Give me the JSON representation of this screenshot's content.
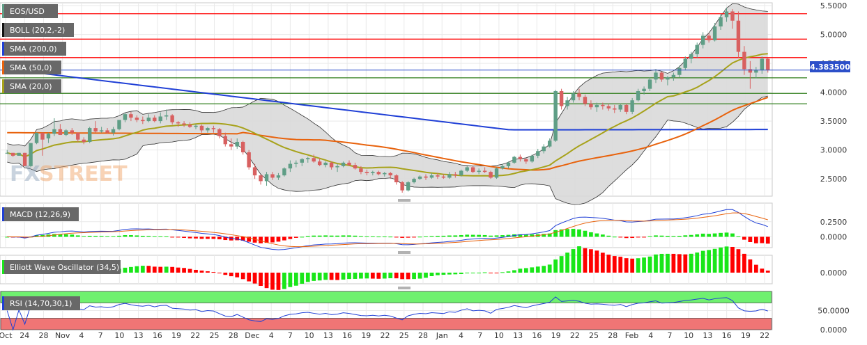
{
  "colors": {
    "background": "#ffffff",
    "grid": "#e9e9e9",
    "frame": "#c8c8c8",
    "candle_up": "#5f9e86",
    "candle_down": "#d86060",
    "sma200": "#1f3fd6",
    "sma50": "#e8620c",
    "sma20": "#a7a21a",
    "bollinger_fill": "#d9d9d9",
    "bollinger_line": "#333333",
    "hline_red": "#ff0000",
    "hline_green": "#2e7d1a",
    "hline_blue": "#2c4fc9",
    "hist_green": "#19e619",
    "hist_red": "#ff0000",
    "rsi_overbought": "#6ff06f",
    "rsi_oversold": "#f07575",
    "price_tag": "#2c4fc9",
    "legend_bg": "#686868"
  },
  "legend": {
    "symbol": "EOS/USD",
    "boll": "BOLL (20,2,-2)",
    "sma200": "SMA (200,0)",
    "sma50": "SMA (50,0)",
    "sma20": "SMA (20,0)",
    "macd": "MACD (12,26,9)",
    "ewo": "Elliott Wave Oscillator (34,5)",
    "rsi": "RSI (14,70,30,1)"
  },
  "watermark": {
    "fx": "FX",
    "street": "STREET"
  },
  "last_price": "4.383500",
  "chart_data": [
    {
      "type": "candlestick",
      "ylim": [
        2.2,
        5.55
      ],
      "y_ticks": [
        "5.5000",
        "5.0000",
        "4.5000",
        "4.0000",
        "3.5000",
        "3.0000",
        "2.5000"
      ],
      "tick_values": [
        5.5,
        5.0,
        4.5,
        4.0,
        3.5,
        3.0,
        2.5
      ],
      "x_labels": [
        "Oct",
        "24",
        "28",
        "Nov",
        "4",
        "7",
        "10",
        "13",
        "16",
        "19",
        "22",
        "25",
        "28",
        "Dec",
        "4",
        "7",
        "10",
        "13",
        "16",
        "19",
        "22",
        "25",
        "28",
        "Jan",
        "4",
        "7",
        "10",
        "13",
        "16",
        "19",
        "22",
        "25",
        "28",
        "Feb",
        "4",
        "7",
        "10",
        "13",
        "16",
        "19",
        "22"
      ],
      "horizontal_levels": [
        {
          "value": 5.36,
          "color": "red"
        },
        {
          "value": 4.92,
          "color": "red"
        },
        {
          "value": 4.6,
          "color": "red"
        },
        {
          "value": 4.25,
          "color": "green"
        },
        {
          "value": 3.98,
          "color": "green"
        },
        {
          "value": 3.8,
          "color": "green"
        }
      ],
      "ohlc": [
        [
          2.95,
          3.0,
          2.93,
          2.95
        ],
        [
          2.95,
          2.95,
          2.88,
          2.9
        ],
        [
          2.9,
          2.95,
          2.9,
          2.95
        ],
        [
          2.95,
          2.95,
          2.72,
          2.72
        ],
        [
          2.72,
          3.12,
          2.7,
          3.12
        ],
        [
          3.12,
          3.3,
          3.1,
          3.3
        ],
        [
          3.3,
          3.3,
          2.9,
          3.18
        ],
        [
          3.2,
          3.3,
          3.12,
          3.28
        ],
        [
          3.28,
          3.55,
          3.24,
          3.36
        ],
        [
          3.36,
          3.45,
          3.26,
          3.26
        ],
        [
          3.26,
          3.36,
          3.24,
          3.34
        ],
        [
          3.34,
          3.38,
          3.26,
          3.3
        ],
        [
          3.3,
          3.3,
          3.14,
          3.18
        ],
        [
          3.18,
          3.22,
          3.1,
          3.14
        ],
        [
          3.14,
          3.4,
          3.12,
          3.38
        ],
        [
          3.38,
          3.5,
          3.3,
          3.32
        ],
        [
          3.32,
          3.4,
          3.3,
          3.34
        ],
        [
          3.34,
          3.38,
          3.28,
          3.3
        ],
        [
          3.3,
          3.4,
          3.25,
          3.36
        ],
        [
          3.36,
          3.52,
          3.34,
          3.52
        ],
        [
          3.52,
          3.65,
          3.48,
          3.62
        ],
        [
          3.62,
          3.66,
          3.5,
          3.56
        ],
        [
          3.56,
          3.6,
          3.48,
          3.52
        ],
        [
          3.52,
          3.58,
          3.45,
          3.5
        ],
        [
          3.5,
          3.62,
          3.48,
          3.56
        ],
        [
          3.56,
          3.6,
          3.48,
          3.5
        ],
        [
          3.5,
          3.65,
          3.46,
          3.58
        ],
        [
          3.58,
          3.7,
          3.52,
          3.6
        ],
        [
          3.6,
          3.62,
          3.44,
          3.48
        ],
        [
          3.48,
          3.5,
          3.4,
          3.46
        ],
        [
          3.46,
          3.5,
          3.4,
          3.44
        ],
        [
          3.44,
          3.48,
          3.38,
          3.4
        ],
        [
          3.4,
          3.45,
          3.36,
          3.42
        ],
        [
          3.42,
          3.44,
          3.3,
          3.34
        ],
        [
          3.34,
          3.4,
          3.3,
          3.38
        ],
        [
          3.38,
          3.42,
          3.3,
          3.36
        ],
        [
          3.36,
          3.38,
          3.2,
          3.24
        ],
        [
          3.24,
          3.3,
          3.06,
          3.1
        ],
        [
          3.1,
          3.2,
          3.0,
          3.06
        ],
        [
          3.06,
          3.2,
          3.02,
          3.14
        ],
        [
          3.14,
          3.16,
          2.92,
          2.96
        ],
        [
          2.96,
          3.0,
          2.66,
          2.7
        ],
        [
          2.7,
          2.76,
          2.5,
          2.56
        ],
        [
          2.56,
          2.58,
          2.4,
          2.46
        ],
        [
          2.46,
          2.62,
          2.38,
          2.58
        ],
        [
          2.58,
          2.62,
          2.48,
          2.52
        ],
        [
          2.52,
          2.6,
          2.48,
          2.56
        ],
        [
          2.56,
          2.7,
          2.54,
          2.68
        ],
        [
          2.68,
          2.82,
          2.62,
          2.76
        ],
        [
          2.76,
          2.82,
          2.7,
          2.78
        ],
        [
          2.78,
          2.86,
          2.72,
          2.84
        ],
        [
          2.84,
          2.88,
          2.78,
          2.86
        ],
        [
          2.86,
          2.92,
          2.78,
          2.8
        ],
        [
          2.8,
          2.86,
          2.72,
          2.74
        ],
        [
          2.74,
          2.8,
          2.7,
          2.78
        ],
        [
          2.78,
          2.8,
          2.66,
          2.7
        ],
        [
          2.7,
          2.76,
          2.62,
          2.72
        ],
        [
          2.72,
          2.8,
          2.7,
          2.78
        ],
        [
          2.78,
          2.82,
          2.72,
          2.74
        ],
        [
          2.74,
          2.78,
          2.66,
          2.68
        ],
        [
          2.68,
          2.72,
          2.58,
          2.62
        ],
        [
          2.62,
          2.66,
          2.56,
          2.6
        ],
        [
          2.6,
          2.64,
          2.56,
          2.62
        ],
        [
          2.62,
          2.64,
          2.56,
          2.58
        ],
        [
          2.58,
          2.62,
          2.54,
          2.6
        ],
        [
          2.6,
          2.62,
          2.5,
          2.56
        ],
        [
          2.56,
          2.58,
          2.4,
          2.44
        ],
        [
          2.44,
          2.46,
          2.26,
          2.3
        ],
        [
          2.3,
          2.46,
          2.28,
          2.44
        ],
        [
          2.44,
          2.52,
          2.42,
          2.5
        ],
        [
          2.5,
          2.56,
          2.48,
          2.54
        ],
        [
          2.54,
          2.58,
          2.48,
          2.52
        ],
        [
          2.52,
          2.6,
          2.5,
          2.56
        ],
        [
          2.56,
          2.6,
          2.5,
          2.54
        ],
        [
          2.54,
          2.58,
          2.5,
          2.52
        ],
        [
          2.52,
          2.62,
          2.5,
          2.58
        ],
        [
          2.58,
          2.62,
          2.52,
          2.56
        ],
        [
          2.56,
          2.66,
          2.54,
          2.64
        ],
        [
          2.64,
          2.72,
          2.62,
          2.7
        ],
        [
          2.7,
          2.72,
          2.6,
          2.62
        ],
        [
          2.62,
          2.68,
          2.58,
          2.64
        ],
        [
          2.64,
          2.7,
          2.6,
          2.62
        ],
        [
          2.62,
          2.64,
          2.5,
          2.52
        ],
        [
          2.52,
          2.7,
          2.5,
          2.68
        ],
        [
          2.68,
          2.76,
          2.66,
          2.72
        ],
        [
          2.72,
          2.8,
          2.68,
          2.78
        ],
        [
          2.78,
          2.9,
          2.76,
          2.88
        ],
        [
          2.88,
          2.92,
          2.8,
          2.84
        ],
        [
          2.84,
          2.86,
          2.76,
          2.8
        ],
        [
          2.8,
          2.92,
          2.78,
          2.9
        ],
        [
          2.9,
          3.02,
          2.86,
          2.98
        ],
        [
          2.98,
          3.1,
          2.94,
          3.06
        ],
        [
          3.06,
          3.2,
          3.04,
          3.16
        ],
        [
          3.16,
          4.04,
          3.14,
          4.02
        ],
        [
          4.02,
          4.06,
          3.7,
          3.76
        ],
        [
          3.76,
          3.92,
          3.7,
          3.86
        ],
        [
          3.86,
          4.02,
          3.82,
          3.98
        ],
        [
          3.98,
          4.06,
          3.86,
          3.92
        ],
        [
          3.92,
          3.96,
          3.76,
          3.8
        ],
        [
          3.8,
          3.86,
          3.7,
          3.74
        ],
        [
          3.74,
          3.82,
          3.66,
          3.78
        ],
        [
          3.78,
          3.82,
          3.7,
          3.76
        ],
        [
          3.76,
          3.8,
          3.68,
          3.72
        ],
        [
          3.72,
          3.78,
          3.64,
          3.7
        ],
        [
          3.7,
          3.8,
          3.66,
          3.78
        ],
        [
          3.78,
          3.8,
          3.62,
          3.66
        ],
        [
          3.66,
          3.9,
          3.62,
          3.86
        ],
        [
          3.86,
          4.06,
          3.84,
          4.02
        ],
        [
          4.02,
          4.1,
          3.96,
          4.06
        ],
        [
          4.06,
          4.26,
          4.02,
          4.22
        ],
        [
          4.22,
          4.4,
          4.16,
          4.34
        ],
        [
          4.34,
          4.36,
          4.18,
          4.22
        ],
        [
          4.22,
          4.28,
          4.12,
          4.26
        ],
        [
          4.26,
          4.34,
          4.2,
          4.3
        ],
        [
          4.3,
          4.46,
          4.26,
          4.42
        ],
        [
          4.42,
          4.62,
          4.38,
          4.58
        ],
        [
          4.58,
          4.7,
          4.5,
          4.66
        ],
        [
          4.66,
          4.86,
          4.6,
          4.82
        ],
        [
          4.82,
          5.04,
          4.76,
          4.98
        ],
        [
          4.98,
          5.02,
          4.86,
          4.9
        ],
        [
          4.9,
          5.2,
          4.88,
          5.14
        ],
        [
          5.14,
          5.36,
          5.08,
          5.3
        ],
        [
          5.3,
          5.46,
          5.22,
          5.4
        ],
        [
          5.4,
          5.44,
          5.1,
          5.24
        ],
        [
          5.24,
          5.4,
          4.6,
          4.7
        ],
        [
          4.7,
          4.8,
          4.3,
          4.4
        ],
        [
          4.4,
          4.54,
          4.06,
          4.34
        ],
        [
          4.34,
          4.44,
          4.24,
          4.38
        ],
        [
          4.38,
          4.62,
          4.32,
          4.58
        ],
        [
          4.58,
          4.6,
          4.34,
          4.38
        ]
      ]
    },
    {
      "type": "bar+line",
      "name": "MACD (12,26,9)",
      "y_ticks": [
        "0.2500",
        "0.0000"
      ],
      "tick_values": [
        0.25,
        0.0
      ],
      "ylim": [
        -0.18,
        0.56
      ]
    },
    {
      "type": "bar",
      "name": "Elliott Wave Oscillator (34,5)",
      "y_ticks": [
        "0.0000"
      ],
      "tick_values": [
        0.0
      ],
      "ylim": [
        -0.45,
        0.7
      ]
    },
    {
      "type": "line",
      "name": "RSI (14,70,30,1)",
      "y_ticks": [
        "50.0000",
        "0.0000"
      ],
      "tick_values": [
        50,
        0
      ],
      "ylim": [
        0,
        100
      ]
    }
  ]
}
